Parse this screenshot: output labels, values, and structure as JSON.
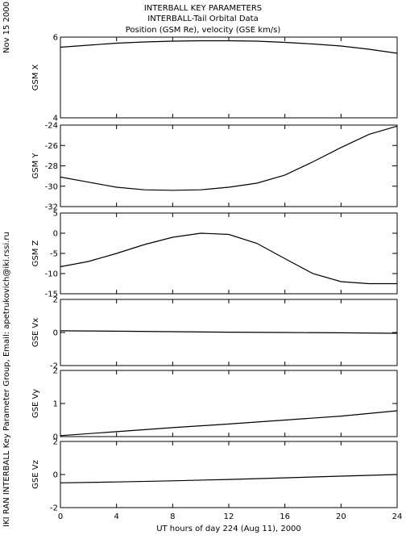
{
  "header": {
    "line1": "INTERBALL KEY PARAMETERS",
    "line2": "INTERBALL-Tail Orbital Data",
    "line3": "Position (GSM Re), velocity (GSE km/s)"
  },
  "side": {
    "date": "Nov 15 2000",
    "credit": "IKI RAN INTERBALL Key Parameter Group, Email: apetrukovich@iki.rssi.ru"
  },
  "chart_data": {
    "type": "line",
    "xlabel": "UT hours of day 224 (Aug 11), 2000",
    "xlim": [
      0,
      24
    ],
    "xticks": [
      "0",
      "4",
      "8",
      "12",
      "16",
      "20",
      "24"
    ],
    "panels": [
      {
        "ylabel": "GSM X",
        "ylim": [
          4,
          6
        ],
        "yticks": [
          {
            "v": 4,
            "label": "4"
          },
          {
            "v": 6,
            "label": "6"
          }
        ],
        "x": [
          0,
          2,
          4,
          6,
          8,
          10,
          12,
          14,
          16,
          18,
          20,
          22,
          24
        ],
        "y": [
          5.75,
          5.8,
          5.85,
          5.88,
          5.9,
          5.91,
          5.91,
          5.9,
          5.87,
          5.83,
          5.78,
          5.7,
          5.6
        ]
      },
      {
        "ylabel": "GSM Y",
        "ylim": [
          -32,
          -24
        ],
        "yticks": [
          {
            "v": -32,
            "label": "-32"
          },
          {
            "v": -30,
            "label": "-30"
          },
          {
            "v": -28,
            "label": "-28"
          },
          {
            "v": -26,
            "label": "-26"
          },
          {
            "v": -24,
            "label": "-24"
          }
        ],
        "x": [
          0,
          2,
          4,
          6,
          8,
          10,
          12,
          14,
          16,
          18,
          20,
          22,
          24
        ],
        "y": [
          -29.1,
          -29.6,
          -30.1,
          -30.35,
          -30.4,
          -30.35,
          -30.1,
          -29.7,
          -28.9,
          -27.6,
          -26.2,
          -24.9,
          -24.1
        ]
      },
      {
        "ylabel": "GSM Z",
        "ylim": [
          -15,
          5
        ],
        "yticks": [
          {
            "v": -15,
            "label": "-15"
          },
          {
            "v": -10,
            "label": "-10"
          },
          {
            "v": -5,
            "label": "-5"
          },
          {
            "v": 0,
            "label": "0"
          },
          {
            "v": 5,
            "label": "5"
          }
        ],
        "x": [
          0,
          2,
          4,
          6,
          8,
          10,
          12,
          14,
          16,
          18,
          20,
          22,
          24
        ],
        "y": [
          -8.3,
          -7.0,
          -5.0,
          -2.8,
          -1.0,
          0.0,
          -0.3,
          -2.5,
          -6.3,
          -10.0,
          -12.0,
          -12.5,
          -12.5
        ]
      },
      {
        "ylabel": "GSE Vx",
        "ylim": [
          -2,
          2
        ],
        "yticks": [
          {
            "v": -2,
            "label": "-2"
          },
          {
            "v": 0,
            "label": "0"
          },
          {
            "v": 2,
            "label": "2"
          }
        ],
        "x": [
          0,
          4,
          8,
          12,
          16,
          20,
          24
        ],
        "y": [
          0.1,
          0.08,
          0.05,
          0.02,
          0.0,
          -0.02,
          -0.05
        ]
      },
      {
        "ylabel": "GSE Vy",
        "ylim": [
          0,
          2
        ],
        "yticks": [
          {
            "v": 0,
            "label": "0"
          },
          {
            "v": 1,
            "label": "1"
          },
          {
            "v": 2,
            "label": "2"
          }
        ],
        "x": [
          0,
          4,
          8,
          12,
          16,
          20,
          24
        ],
        "y": [
          0.03,
          0.15,
          0.27,
          0.38,
          0.5,
          0.62,
          0.78
        ]
      },
      {
        "ylabel": "GSE Vz",
        "ylim": [
          -2,
          2
        ],
        "yticks": [
          {
            "v": -2,
            "label": "-2"
          },
          {
            "v": 0,
            "label": "0"
          },
          {
            "v": 2,
            "label": "2"
          }
        ],
        "x": [
          0,
          4,
          8,
          12,
          16,
          20,
          24
        ],
        "y": [
          -0.5,
          -0.45,
          -0.38,
          -0.3,
          -0.2,
          -0.1,
          0.0
        ]
      }
    ]
  }
}
